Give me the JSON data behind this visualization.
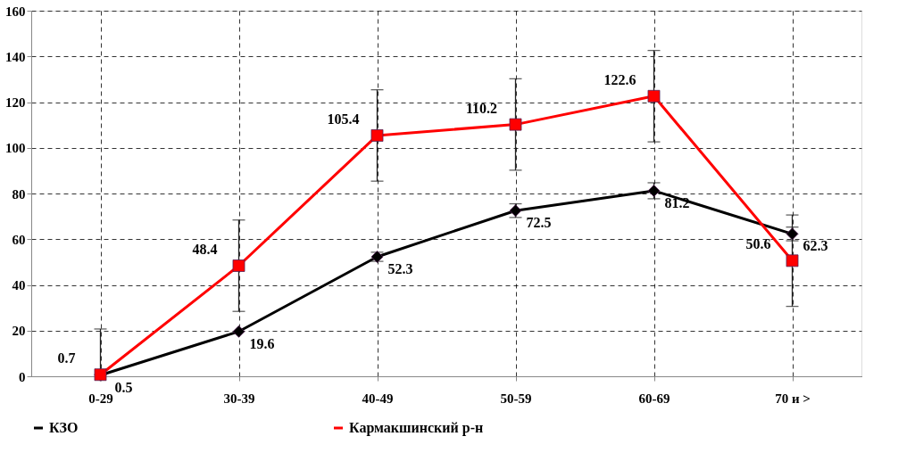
{
  "chart_data": {
    "type": "line",
    "categories": [
      "0-29",
      "30-39",
      "40-49",
      "50-59",
      "60-69",
      "70 и >"
    ],
    "series": [
      {
        "name": "КЗО",
        "color": "#000000",
        "marker": "diamond",
        "values": [
          0.5,
          19.6,
          52.3,
          72.5,
          81.2,
          62.3
        ],
        "errors": [
          null,
          null,
          2,
          3,
          3.5,
          3
        ]
      },
      {
        "name": "Кармакшинский р-н",
        "color": "#ff0000",
        "marker": "square",
        "values": [
          0.7,
          48.4,
          105.4,
          110.2,
          122.6,
          50.6
        ],
        "errors": [
          [
            0.7,
            20.7
          ],
          20,
          20,
          20,
          20,
          20
        ]
      }
    ],
    "ylim": [
      0,
      160
    ],
    "yticks": [
      0,
      20,
      40,
      60,
      80,
      100,
      120,
      140,
      160
    ],
    "grid": true,
    "legend": "bottom",
    "data_labels": true
  }
}
